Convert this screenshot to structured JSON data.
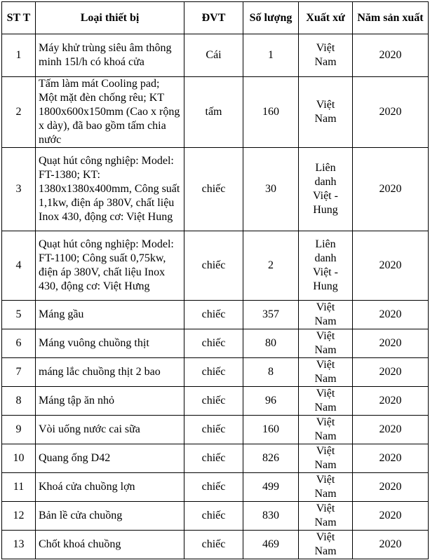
{
  "headers": [
    "ST T",
    "Loại thiết bị",
    "ĐVT",
    "Số lượng",
    "Xuất xứ",
    "Năm sản xuất"
  ],
  "rows": [
    {
      "stt": "1",
      "name": "Máy khử trùng siêu âm thông minh 15l/h có khoá cửa",
      "unit": "Cái",
      "qty": "1",
      "origin": "Việt Nam",
      "year": "2020"
    },
    {
      "stt": "2",
      "name": "Tấm làm mát Cooling pad; Một mặt đèn chống rêu; KT 1800x600x150mm (Cao x rộng x dày), đã bao gồm tấm chia nước",
      "unit": "tấm",
      "qty": "160",
      "origin": "Việt Nam",
      "year": "2020"
    },
    {
      "stt": "3",
      "name": "Quạt hút công nghiệp: Model: FT-1380; KT: 1380x1380x400mm, Công suất 1,1kw, điện áp 380V, chất liệu Inox 430, động cơ: Việt Hung",
      "unit": "chiếc",
      "qty": "30",
      "origin": "Liên danh Việt - Hung",
      "year": "2020"
    },
    {
      "stt": "4",
      "name": "Quạt hút công nghiệp: Model: FT-1100; Công suất 0,75kw, điện áp 380V, chất liệu Inox 430, động cơ: Việt Hưng",
      "unit": "chiếc",
      "qty": "2",
      "origin": "Liên danh Việt - Hung",
      "year": "2020"
    },
    {
      "stt": "5",
      "name": "Máng gầu",
      "unit": "chiếc",
      "qty": "357",
      "origin": "Việt Nam",
      "year": "2020"
    },
    {
      "stt": "6",
      "name": "Máng vuông chuồng thịt",
      "unit": "chiếc",
      "qty": "80",
      "origin": "Việt Nam",
      "year": "2020"
    },
    {
      "stt": "7",
      "name": "máng lắc chuồng thịt 2 bao",
      "unit": "chiếc",
      "qty": "8",
      "origin": "Việt Nam",
      "year": "2020"
    },
    {
      "stt": "8",
      "name": "Máng tập ăn nhỏ",
      "unit": "chiếc",
      "qty": "96",
      "origin": "Việt Nam",
      "year": "2020"
    },
    {
      "stt": "9",
      "name": "Vòi uống nước cai sữa",
      "unit": "chiếc",
      "qty": "160",
      "origin": "Việt Nam",
      "year": "2020"
    },
    {
      "stt": "10",
      "name": "Quang ống D42",
      "unit": "chiếc",
      "qty": "826",
      "origin": "Việt Nam",
      "year": "2020"
    },
    {
      "stt": "11",
      "name": "Khoá cửa chuồng lợn",
      "unit": "chiếc",
      "qty": "499",
      "origin": "Việt Nam",
      "year": "2020"
    },
    {
      "stt": "12",
      "name": "Bản lề cửa chuồng",
      "unit": "chiếc",
      "qty": "830",
      "origin": "Việt Nam",
      "year": "2020"
    },
    {
      "stt": "13",
      "name": "Chốt khoá chuồng",
      "unit": "chiếc",
      "qty": "469",
      "origin": "Việt Nam",
      "year": "2020"
    }
  ]
}
